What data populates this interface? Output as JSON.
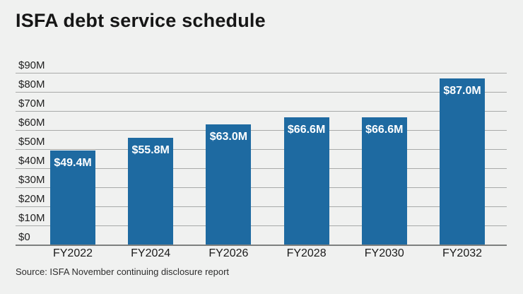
{
  "title": "ISFA debt service schedule",
  "source": "Source: ISFA November continuing disclosure report",
  "colors": {
    "background": "#f0f1f0",
    "bar": "#1e6aa1",
    "gridline": "#a8aaa9",
    "axis": "#7d807f",
    "bar_label": "#ffffff",
    "text": "#1b1b1b"
  },
  "chart_data": {
    "type": "bar",
    "title": "ISFA debt service schedule",
    "categories": [
      "FY2022",
      "FY2024",
      "FY2026",
      "FY2028",
      "FY2030",
      "FY2032"
    ],
    "values": [
      49.4,
      55.8,
      63.0,
      66.6,
      66.6,
      87.0
    ],
    "bar_labels": [
      "$49.4M",
      "$55.8M",
      "$63.0M",
      "$66.6M",
      "$66.6M",
      "$87.0M"
    ],
    "y_ticks": [
      0,
      10,
      20,
      30,
      40,
      50,
      60,
      70,
      80,
      90
    ],
    "y_tick_labels": [
      "$0",
      "$10M",
      "$20M",
      "$30M",
      "$40M",
      "$50M",
      "$60M",
      "$70M",
      "$80M",
      "$90M"
    ],
    "xlabel": "",
    "ylabel": "",
    "ylim": [
      0,
      90
    ],
    "grid": true,
    "legend": false,
    "source": "Source: ISFA November continuing disclosure report"
  }
}
